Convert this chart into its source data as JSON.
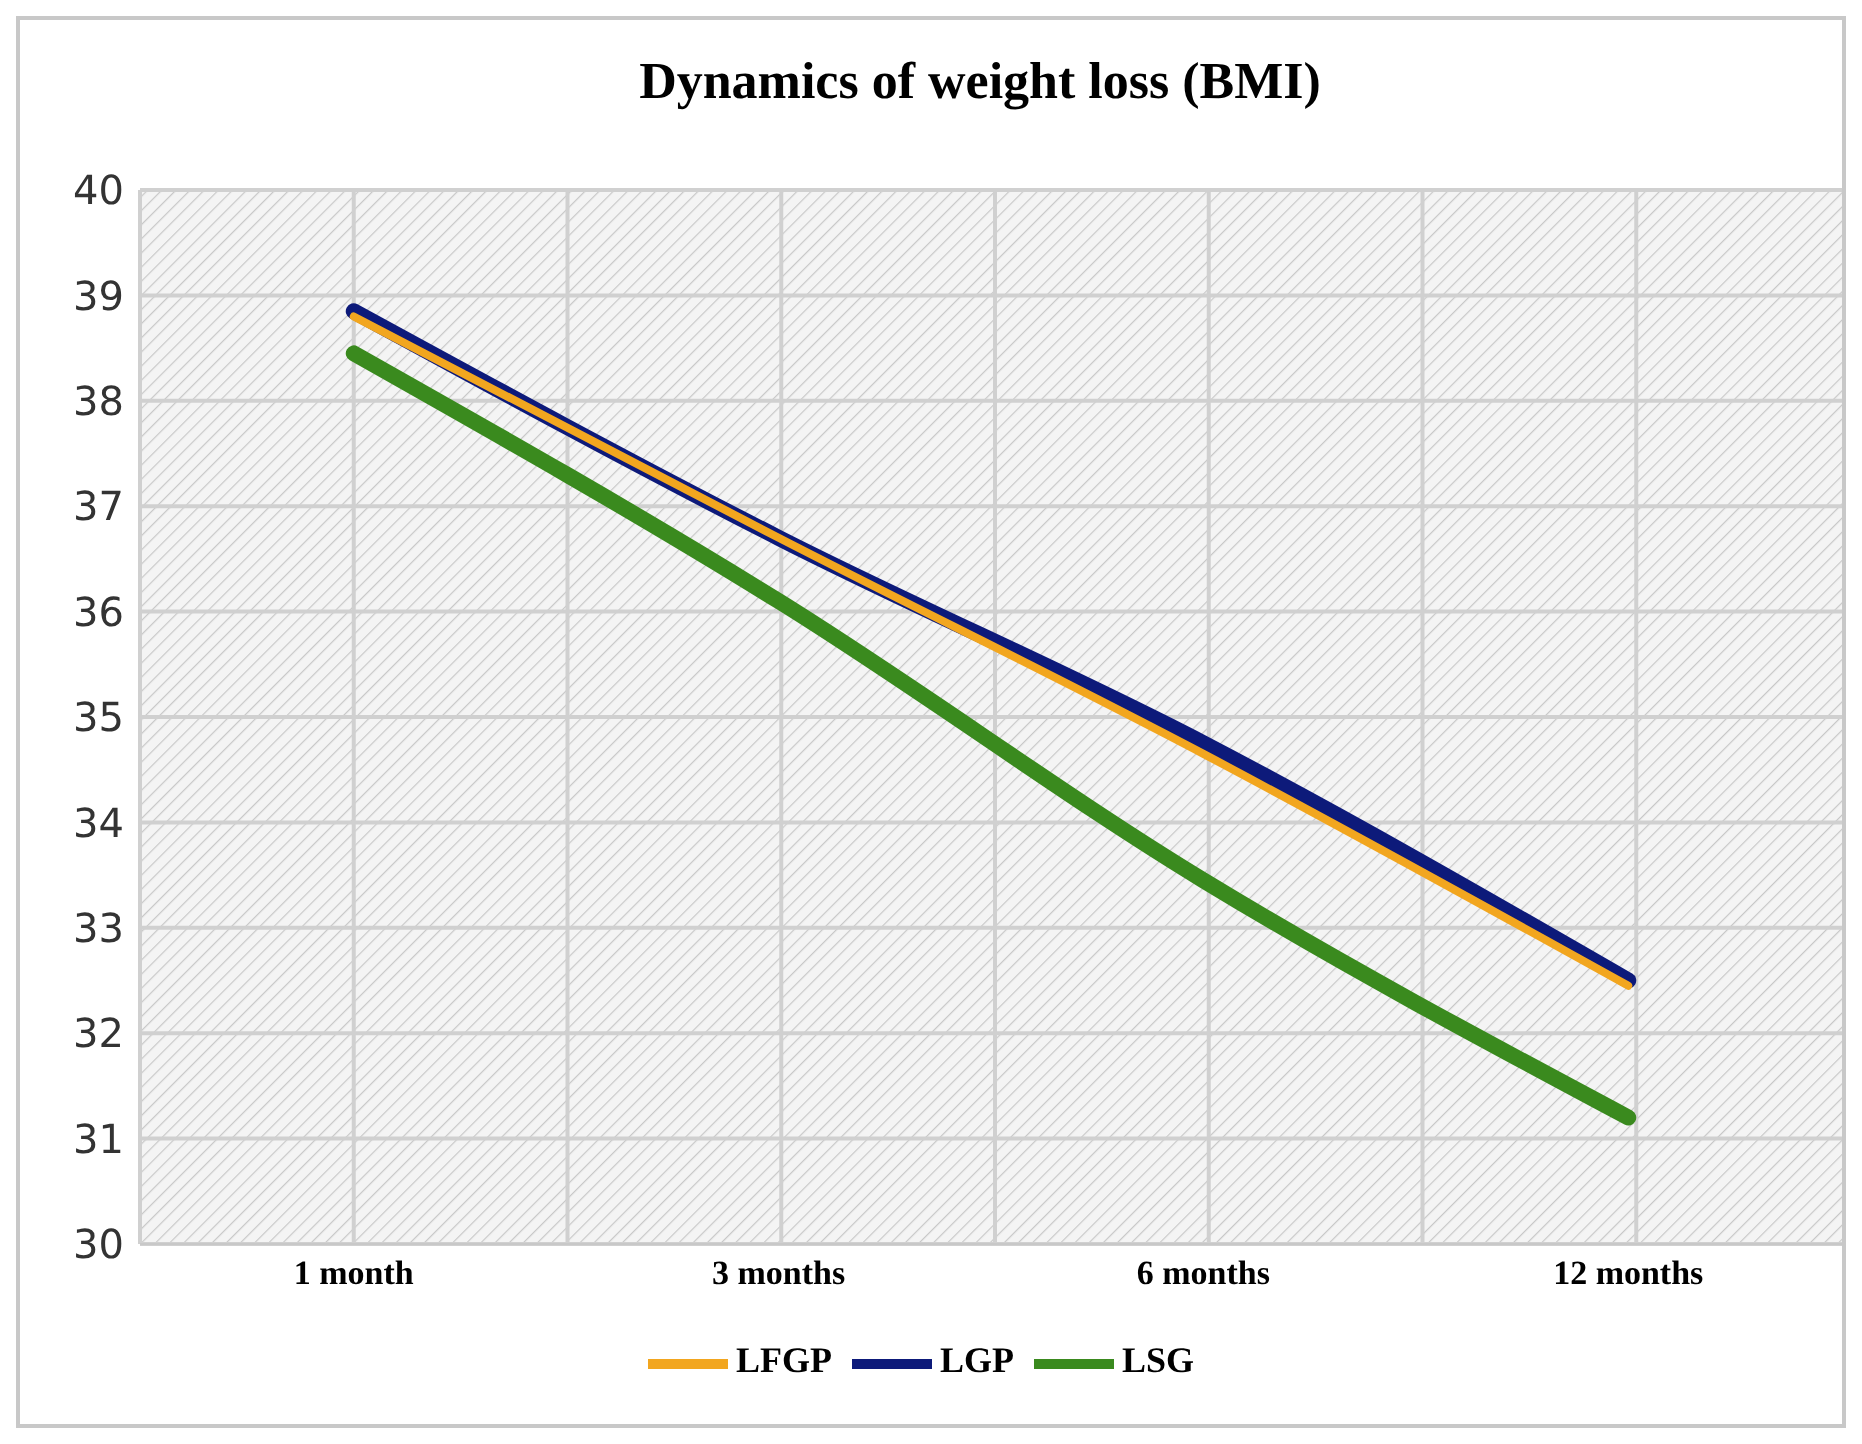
{
  "chart_data": {
    "type": "line",
    "title": "Dynamics of weight loss (BMI)",
    "categories": [
      "1 month",
      "3 months",
      "6 months",
      "12 months"
    ],
    "series": [
      {
        "name": "LSG",
        "color": "#3a8a1e",
        "values": [
          38.45,
          36.1,
          33.45,
          31.2
        ]
      },
      {
        "name": "LGP",
        "color": "#0d1a7a",
        "values": [
          38.85,
          36.7,
          34.75,
          32.5
        ]
      },
      {
        "name": "LFGP",
        "color": "#f2a61f",
        "values": [
          38.8,
          36.7,
          34.65,
          32.45
        ]
      }
    ],
    "ylim": [
      30,
      40
    ],
    "yticks": [
      30,
      31,
      32,
      33,
      34,
      35,
      36,
      37,
      38,
      39,
      40
    ],
    "grid": true,
    "legend": "bottom",
    "marker": "none",
    "line_style": "solid"
  }
}
